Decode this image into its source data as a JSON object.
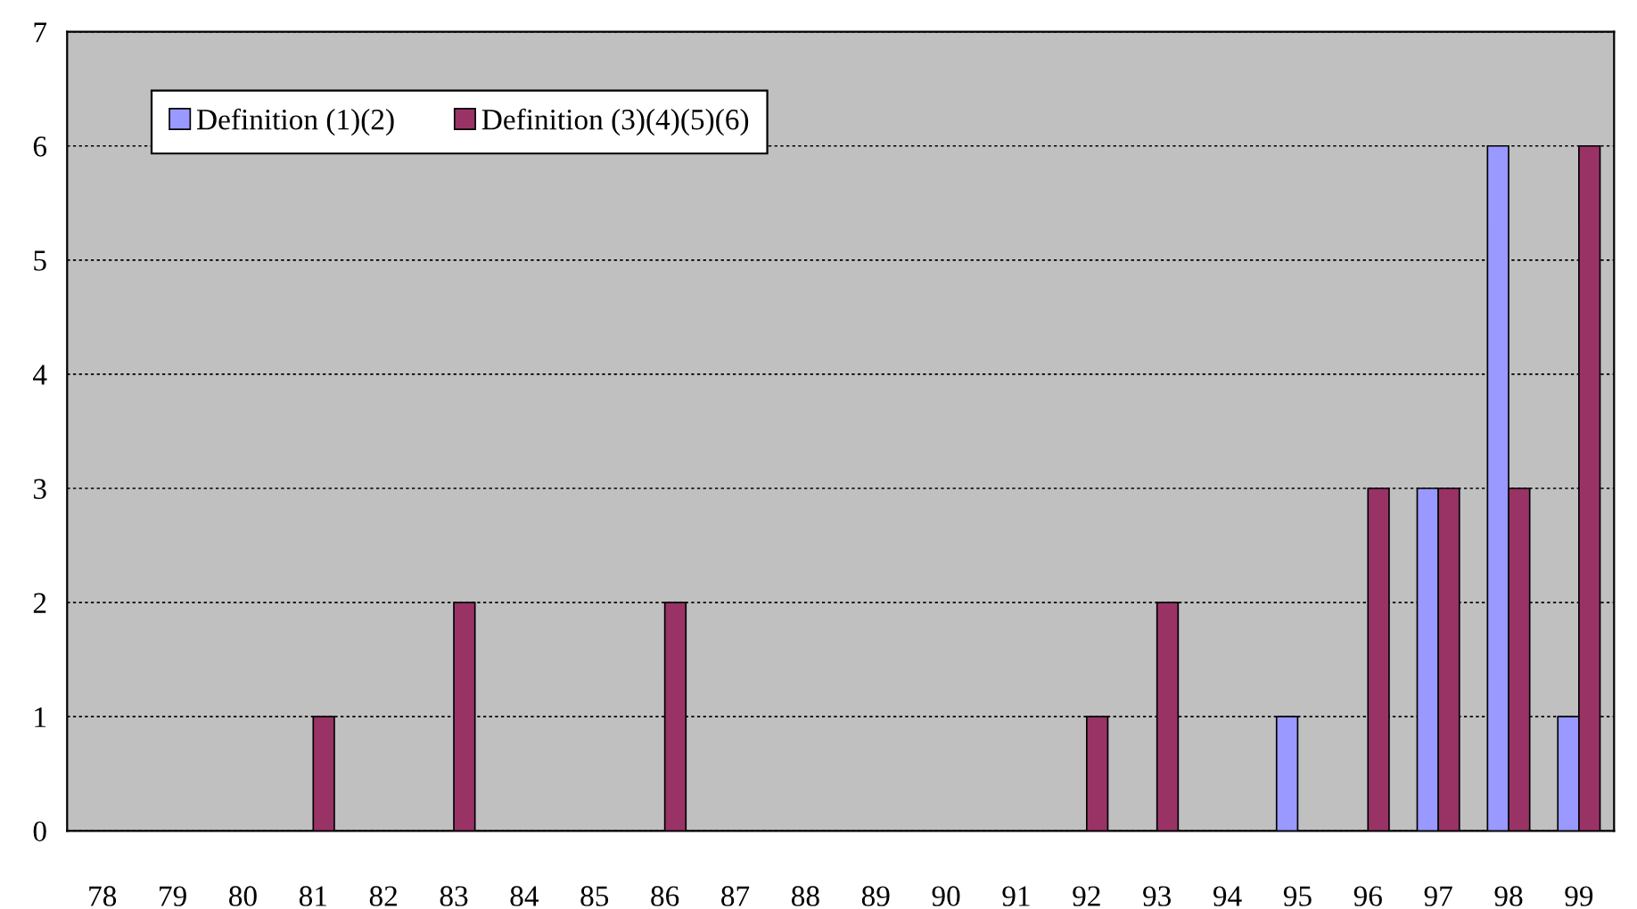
{
  "chart_data": {
    "type": "bar",
    "categories": [
      "78",
      "79",
      "80",
      "81",
      "82",
      "83",
      "84",
      "85",
      "86",
      "87",
      "88",
      "89",
      "90",
      "91",
      "92",
      "93",
      "94",
      "95",
      "96",
      "97",
      "98",
      "99"
    ],
    "series": [
      {
        "name": "Definition (1)(2)",
        "color": "#9999ff",
        "values": [
          0,
          0,
          0,
          0,
          0,
          0,
          0,
          0,
          0,
          0,
          0,
          0,
          0,
          0,
          0,
          0,
          0,
          1,
          0,
          3,
          6,
          1
        ]
      },
      {
        "name": "Definition (3)(4)(5)(6)",
        "color": "#993366",
        "values": [
          0,
          0,
          0,
          1,
          0,
          2,
          0,
          0,
          2,
          0,
          0,
          0,
          0,
          0,
          1,
          2,
          0,
          0,
          3,
          3,
          3,
          6
        ]
      }
    ],
    "ylim": [
      0,
      7
    ],
    "yticks": [
      0,
      1,
      2,
      3,
      4,
      5,
      6,
      7
    ],
    "grid": "y",
    "legend": "top left"
  }
}
